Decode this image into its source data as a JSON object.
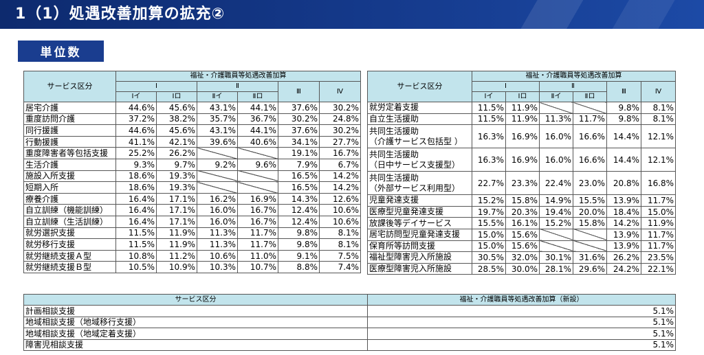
{
  "header": {
    "title": "1（1）処遇改善加算の拡充②"
  },
  "section_badge": "単位数",
  "left_table": {
    "service_header": "サービス区分",
    "group_header": "福祉・介護職員等処遇改善加算",
    "level1": [
      "Ⅰ",
      "Ⅱ",
      "Ⅲ",
      "Ⅳ"
    ],
    "level2": [
      "Ⅰイ",
      "Ⅰロ",
      "Ⅱイ",
      "Ⅱロ"
    ],
    "rows": [
      {
        "name": "居宅介護",
        "values": [
          "44.6%",
          "45.6%",
          "43.1%",
          "44.1%",
          "37.6%",
          "30.2%"
        ]
      },
      {
        "name": "重度訪問介護",
        "values": [
          "37.2%",
          "38.2%",
          "35.7%",
          "36.7%",
          "30.2%",
          "24.8%"
        ]
      },
      {
        "name": "同行援護",
        "values": [
          "44.6%",
          "45.6%",
          "43.1%",
          "44.1%",
          "37.6%",
          "30.2%"
        ]
      },
      {
        "name": "行動援護",
        "values": [
          "41.1%",
          "42.1%",
          "39.6%",
          "40.6%",
          "34.1%",
          "27.7%"
        ]
      },
      {
        "name": "重度障害者等包括支援",
        "values": [
          "25.2%",
          "26.2%",
          "",
          "",
          "19.1%",
          "16.7%"
        ]
      },
      {
        "name": "生活介護",
        "values": [
          "9.3%",
          "9.7%",
          "9.2%",
          "9.6%",
          "7.9%",
          "6.7%"
        ]
      },
      {
        "name": "施設入所支援",
        "values": [
          "18.6%",
          "19.3%",
          "",
          "",
          "16.5%",
          "14.2%"
        ]
      },
      {
        "name": "短期入所",
        "values": [
          "18.6%",
          "19.3%",
          "",
          "",
          "16.5%",
          "14.2%"
        ]
      },
      {
        "name": "療養介護",
        "values": [
          "16.4%",
          "17.1%",
          "16.2%",
          "16.9%",
          "14.3%",
          "12.6%"
        ]
      },
      {
        "name": "自立訓練（機能訓練）",
        "values": [
          "16.4%",
          "17.1%",
          "16.0%",
          "16.7%",
          "12.4%",
          "10.6%"
        ]
      },
      {
        "name": "自立訓練（生活訓練）",
        "values": [
          "16.4%",
          "17.1%",
          "16.0%",
          "16.7%",
          "12.4%",
          "10.6%"
        ]
      },
      {
        "name": "就労選択支援",
        "values": [
          "11.5%",
          "11.9%",
          "11.3%",
          "11.7%",
          "9.8%",
          "8.1%"
        ]
      },
      {
        "name": "就労移行支援",
        "values": [
          "11.5%",
          "11.9%",
          "11.3%",
          "11.7%",
          "9.8%",
          "8.1%"
        ]
      },
      {
        "name": "就労継続支援Ａ型",
        "values": [
          "10.8%",
          "11.2%",
          "10.6%",
          "11.0%",
          "9.1%",
          "7.5%"
        ]
      },
      {
        "name": "就労継続支援Ｂ型",
        "values": [
          "10.5%",
          "10.9%",
          "10.3%",
          "10.7%",
          "8.8%",
          "7.4%"
        ]
      }
    ]
  },
  "right_table": {
    "service_header": "サービス区分",
    "group_header": "福祉・介護職員等処遇改善加算",
    "level1": [
      "Ⅰ",
      "Ⅱ",
      "Ⅲ",
      "Ⅳ"
    ],
    "level2": [
      "Ⅰイ",
      "Ⅰロ",
      "Ⅱイ",
      "Ⅱロ"
    ],
    "rows": [
      {
        "name": "就労定着支援",
        "values": [
          "11.5%",
          "11.9%",
          "",
          "",
          "9.8%",
          "8.1%"
        ]
      },
      {
        "name": "自立生活援助",
        "values": [
          "11.5%",
          "11.9%",
          "11.3%",
          "11.7%",
          "9.8%",
          "8.1%"
        ]
      },
      {
        "name": "共同生活援助\n（介護サービス包括型 ）",
        "values": [
          "16.3%",
          "16.9%",
          "16.0%",
          "16.6%",
          "14.4%",
          "12.1%"
        ]
      },
      {
        "name": "共同生活援助\n（日中サービス支援型）",
        "values": [
          "16.3%",
          "16.9%",
          "16.0%",
          "16.6%",
          "14.4%",
          "12.1%"
        ]
      },
      {
        "name": "共同生活援助\n（外部サービス利用型）",
        "values": [
          "22.7%",
          "23.3%",
          "22.4%",
          "23.0%",
          "20.8%",
          "16.8%"
        ]
      },
      {
        "name": "児童発達支援",
        "values": [
          "15.2%",
          "15.8%",
          "14.9%",
          "15.5%",
          "13.9%",
          "11.7%"
        ]
      },
      {
        "name": "医療型児童発達支援",
        "values": [
          "19.7%",
          "20.3%",
          "19.4%",
          "20.0%",
          "18.4%",
          "15.0%"
        ]
      },
      {
        "name": "放課後等デイサービス",
        "values": [
          "15.5%",
          "16.1%",
          "15.2%",
          "15.8%",
          "14.2%",
          "11.9%"
        ]
      },
      {
        "name": "居宅訪問型児童発達支援",
        "values": [
          "15.0%",
          "15.6%",
          "",
          "",
          "13.9%",
          "11.7%"
        ]
      },
      {
        "name": "保育所等訪問支援",
        "values": [
          "15.0%",
          "15.6%",
          "",
          "",
          "13.9%",
          "11.7%"
        ]
      },
      {
        "name": "福祉型障害児入所施設",
        "values": [
          "30.5%",
          "32.0%",
          "30.1%",
          "31.6%",
          "26.2%",
          "23.5%"
        ]
      },
      {
        "name": "医療型障害児入所施設",
        "values": [
          "28.5%",
          "30.0%",
          "28.1%",
          "29.6%",
          "24.2%",
          "22.1%"
        ]
      }
    ]
  },
  "bottom_table": {
    "service_header": "サービス区分",
    "value_header": "福祉・介護職員等処遇改善加算（新設）",
    "rows": [
      {
        "name": "計画相談支援",
        "value": "5.1%"
      },
      {
        "name": "地域相談支援（地域移行支援）",
        "value": "5.1%"
      },
      {
        "name": "地域相談支援（地域定着支援）",
        "value": "5.1%"
      },
      {
        "name": "障害児相談支援",
        "value": "5.1%"
      }
    ]
  }
}
